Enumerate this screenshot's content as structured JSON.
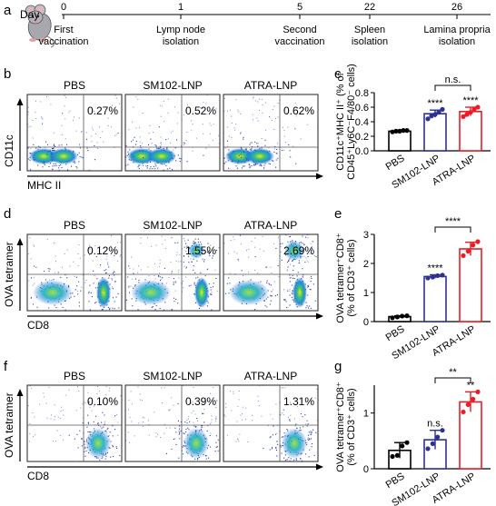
{
  "panels": {
    "a": "a",
    "b": "b",
    "c": "c",
    "d": "d",
    "e": "e",
    "f": "f",
    "g": "g"
  },
  "timeline": {
    "day_label": "Day",
    "events": [
      {
        "day": "0",
        "lines": [
          "First",
          "vaccination"
        ]
      },
      {
        "day": "1",
        "lines": [
          "Lymp node",
          "isolation"
        ]
      },
      {
        "day": "5",
        "lines": [
          "Second",
          "vaccination"
        ]
      },
      {
        "day": "22",
        "lines": [
          "Spleen",
          "isolation"
        ]
      },
      {
        "day": "26",
        "lines": [
          "Lamina propria",
          "isolation"
        ]
      }
    ]
  },
  "flow_rows": [
    {
      "panel": "b",
      "y_label": "CD11c",
      "x_label": "MHC II",
      "plots": [
        {
          "title": "PBS",
          "percent": "0.27%"
        },
        {
          "title": "SM102-LNP",
          "percent": "0.52%"
        },
        {
          "title": "ATRA-LNP",
          "percent": "0.62%"
        }
      ]
    },
    {
      "panel": "d",
      "y_label": "OVA tetramer",
      "x_label": "CD8",
      "plots": [
        {
          "title": "PBS",
          "percent": "0.12%"
        },
        {
          "title": "SM102-LNP",
          "percent": "1.55%"
        },
        {
          "title": "ATRA-LNP",
          "percent": "2.69%"
        }
      ]
    },
    {
      "panel": "f",
      "y_label": "OVA tetramer",
      "x_label": "CD8",
      "plots": [
        {
          "title": "PBS",
          "percent": "0.10%"
        },
        {
          "title": "SM102-LNP",
          "percent": "0.39%"
        },
        {
          "title": "ATRA-LNP",
          "percent": "1.31%"
        }
      ]
    }
  ],
  "chart_data": [
    {
      "panel": "c",
      "type": "bar",
      "ylabel_lines": [
        "CD11c⁺MHC II⁺ (% of",
        "CD45⁺Ly6C⁻F4/80⁻ cells)"
      ],
      "categories": [
        "PBS",
        "SM102-LNP",
        "ATRA-LNP"
      ],
      "values": [
        0.27,
        0.51,
        0.54
      ],
      "errors": [
        0.01,
        0.05,
        0.06
      ],
      "points": [
        [
          0.26,
          0.27,
          0.27,
          0.28,
          0.28
        ],
        [
          0.44,
          0.48,
          0.5,
          0.53,
          0.57
        ],
        [
          0.47,
          0.5,
          0.53,
          0.57,
          0.6
        ]
      ],
      "ylim": [
        0,
        0.8
      ],
      "yticks": [
        "0.0",
        "0.2",
        "0.4",
        "0.6",
        "0.8"
      ],
      "colors": [
        "#000000",
        "#2e3192",
        "#ed1c24"
      ],
      "sig_above": [
        "",
        "****",
        "****"
      ],
      "bracket": {
        "from": 1,
        "to": 2,
        "label": "n.s."
      }
    },
    {
      "panel": "e",
      "type": "bar",
      "ylabel_lines": [
        "OVA tetramer⁺CD8⁺",
        "(% of CD3⁺ cells)"
      ],
      "categories": [
        "PBS",
        "SM102-LNP",
        "ATRA-LNP"
      ],
      "values": [
        0.17,
        1.55,
        2.5
      ],
      "errors": [
        0.03,
        0.06,
        0.23
      ],
      "points": [
        [
          0.13,
          0.16,
          0.19,
          0.2
        ],
        [
          1.5,
          1.53,
          1.58,
          1.6
        ],
        [
          2.27,
          2.42,
          2.63,
          2.75
        ]
      ],
      "ylim": [
        0,
        3
      ],
      "yticks": [
        "0",
        "1",
        "2",
        "3"
      ],
      "colors": [
        "#000000",
        "#2e3192",
        "#ed1c24"
      ],
      "sig_above": [
        "",
        "****",
        ""
      ],
      "bracket": {
        "from": 1,
        "to": 2,
        "label": "****"
      }
    },
    {
      "panel": "g",
      "type": "bar",
      "ylabel_lines": [
        "OVA tetramer⁺CD8⁺",
        "(% of CD3⁺ cells)"
      ],
      "categories": [
        "PBS",
        "SM102-LNP",
        "ATRA-LNP"
      ],
      "values": [
        0.33,
        0.52,
        1.2
      ],
      "errors": [
        0.14,
        0.17,
        0.18
      ],
      "points": [
        [
          0.22,
          0.24,
          0.41,
          0.47
        ],
        [
          0.36,
          0.45,
          0.57,
          0.69
        ],
        [
          1.02,
          1.15,
          1.25,
          1.38
        ]
      ],
      "ylim": [
        0,
        1.5
      ],
      "yticks": [
        "0",
        "1"
      ],
      "ytick_values": [
        0,
        1
      ],
      "colors": [
        "#000000",
        "#2e3192",
        "#ed1c24"
      ],
      "sig_above": [
        "",
        "n.s.",
        "**"
      ],
      "bracket": {
        "from": 1,
        "to": 2,
        "label": "**"
      }
    }
  ]
}
